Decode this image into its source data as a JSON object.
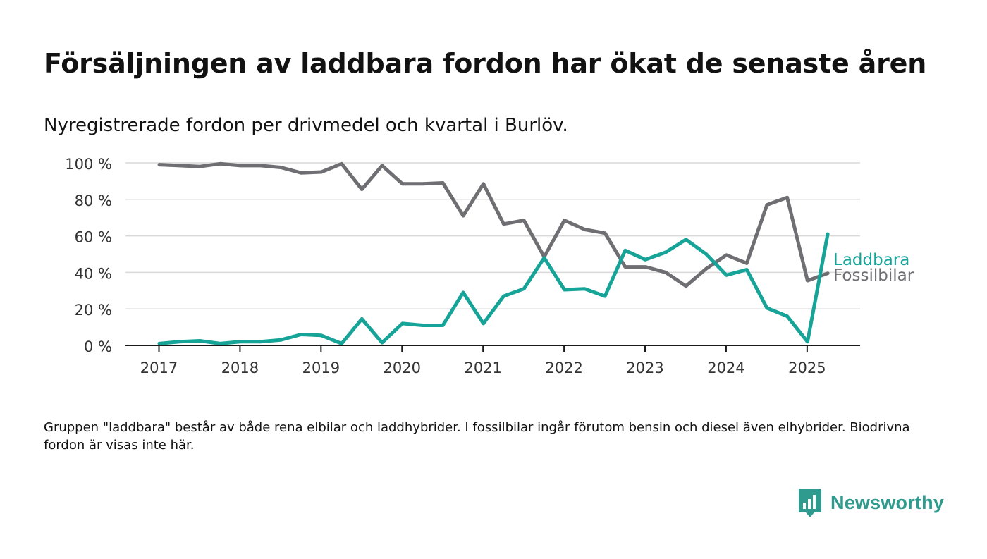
{
  "title": "Försäljningen av laddbara fordon har ökat de senaste åren",
  "subtitle": "Nyregistrerade fordon per drivmedel och kvartal i Burlöv.",
  "note": "Gruppen \"laddbara\" består av både rena elbilar och laddhybrider. I fossilbilar ingår förutom bensin och diesel även elhybrider. Biodrivna fordon är visas inte här.",
  "brand": {
    "name": "Newsworthy",
    "color": "#2f9a8e",
    "icon": "newsworthy-logo-icon"
  },
  "chart_data": {
    "type": "line",
    "title": "",
    "xlabel": "",
    "ylabel": "",
    "ylim": [
      0,
      100
    ],
    "yticks": [
      0,
      20,
      40,
      60,
      80,
      100
    ],
    "ytick_labels": [
      "0 %",
      "20 %",
      "40 %",
      "60 %",
      "80 %",
      "100 %"
    ],
    "xticks": [
      "2017",
      "2018",
      "2019",
      "2020",
      "2021",
      "2022",
      "2023",
      "2024",
      "2025"
    ],
    "grid": true,
    "legend": "inline-right",
    "x": [
      "2017 Q1",
      "2017 Q2",
      "2017 Q3",
      "2017 Q4",
      "2018 Q1",
      "2018 Q2",
      "2018 Q3",
      "2018 Q4",
      "2019 Q1",
      "2019 Q2",
      "2019 Q3",
      "2019 Q4",
      "2020 Q1",
      "2020 Q2",
      "2020 Q3",
      "2020 Q4",
      "2021 Q1",
      "2021 Q2",
      "2021 Q3",
      "2021 Q4",
      "2022 Q1",
      "2022 Q2",
      "2022 Q3",
      "2022 Q4",
      "2023 Q1",
      "2023 Q2",
      "2023 Q3",
      "2023 Q4",
      "2024 Q1",
      "2024 Q2",
      "2024 Q3",
      "2024 Q4",
      "2025 Q1",
      "2025 Q2"
    ],
    "series": [
      {
        "name": "Laddbara",
        "color": "#16a398",
        "values": [
          1,
          2,
          2.5,
          1,
          2,
          2,
          3,
          6,
          5.5,
          1,
          14.5,
          1.5,
          12,
          11,
          11,
          29,
          12,
          27,
          31,
          48,
          30.5,
          31,
          27,
          52,
          47,
          51,
          58,
          50,
          38.5,
          41.5,
          20.5,
          16,
          2,
          61
        ]
      },
      {
        "name": "Fossilbilar",
        "color": "#6f6e73",
        "values": [
          99,
          98.5,
          98,
          99.5,
          98.5,
          98.5,
          97.5,
          94.5,
          95,
          99.5,
          85.5,
          98.5,
          88.5,
          88.5,
          89,
          71,
          88.5,
          66.5,
          68.5,
          48.5,
          68.5,
          63.5,
          61.5,
          43,
          43,
          40,
          32.5,
          42,
          49.5,
          45,
          77,
          81,
          35.5,
          39.5
        ]
      }
    ]
  }
}
